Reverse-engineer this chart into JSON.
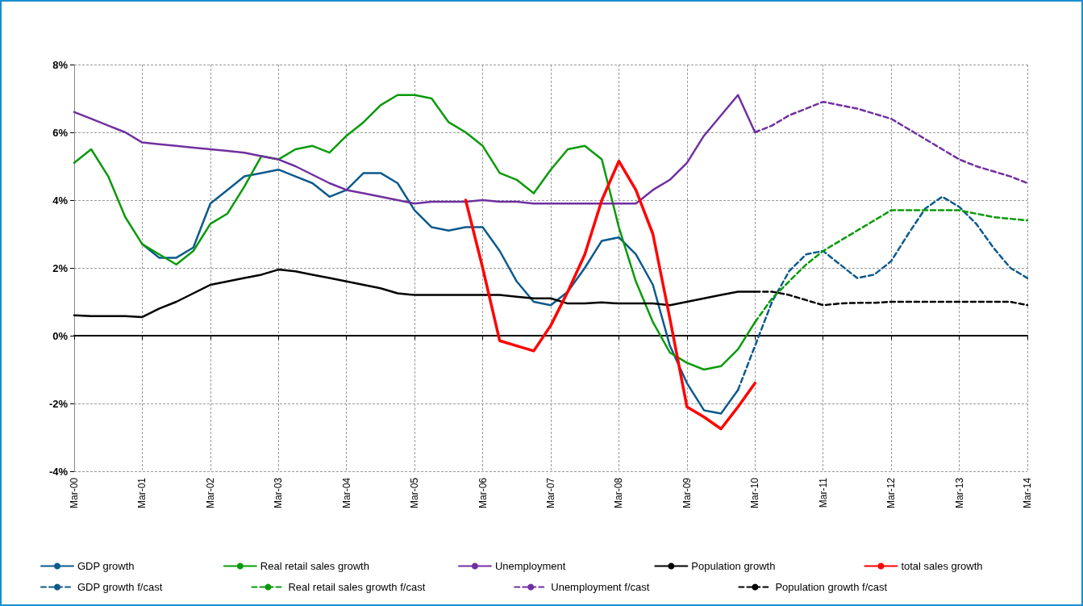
{
  "chart_data": {
    "type": "line",
    "categories": [
      "Mar-00",
      null,
      null,
      null,
      "Mar-01",
      null,
      null,
      null,
      "Mar-02",
      null,
      null,
      null,
      "Mar-03",
      null,
      null,
      null,
      "Mar-04",
      null,
      null,
      null,
      "Mar-05",
      null,
      null,
      null,
      "Mar-06",
      null,
      null,
      null,
      "Mar-07",
      null,
      null,
      null,
      "Mar-08",
      null,
      null,
      null,
      "Mar-09",
      null,
      null,
      null,
      "Mar-10",
      null,
      null,
      null,
      "Mar-11",
      null,
      null,
      null,
      "Mar-12",
      null,
      null,
      null,
      "Mar-13",
      null,
      null,
      null,
      "Mar-14"
    ],
    "series": [
      {
        "name": "GDP growth",
        "color": "#0d5a8c",
        "line_style": "solid",
        "values": [
          null,
          null,
          null,
          null,
          2.7,
          2.3,
          2.3,
          2.6,
          3.9,
          4.3,
          4.7,
          4.8,
          4.9,
          4.7,
          4.5,
          4.1,
          4.3,
          4.8,
          4.8,
          4.5,
          3.7,
          3.2,
          3.1,
          3.2,
          3.2,
          2.5,
          1.6,
          1.0,
          0.9,
          1.3,
          2.0,
          2.8,
          2.9,
          2.4,
          1.5,
          -0.3,
          -1.4,
          -2.2,
          -2.3,
          -1.6,
          null,
          null,
          null,
          null,
          null,
          null,
          null,
          null,
          null,
          null,
          null,
          null,
          null,
          null,
          null,
          null,
          null
        ]
      },
      {
        "name": "Real retail sales growth",
        "color": "#0a9a0a",
        "line_style": "solid",
        "values": [
          5.1,
          5.5,
          4.7,
          3.5,
          2.7,
          2.4,
          2.1,
          2.5,
          3.3,
          3.6,
          4.4,
          5.3,
          5.2,
          5.5,
          5.6,
          5.4,
          5.9,
          6.3,
          6.8,
          7.1,
          7.1,
          7.0,
          6.3,
          6.0,
          5.6,
          4.8,
          4.6,
          4.2,
          4.9,
          5.5,
          5.6,
          5.2,
          3.2,
          1.6,
          0.4,
          -0.5,
          -0.8,
          -1.0,
          -0.9,
          -0.4,
          0.4,
          null,
          null,
          null,
          null,
          null,
          null,
          null,
          null,
          null,
          null,
          null,
          null,
          null,
          null,
          null,
          null
        ]
      },
      {
        "name": "Unemployment",
        "color": "#7030a0",
        "line_style": "solid",
        "values": [
          6.6,
          6.4,
          6.2,
          6.0,
          5.7,
          5.65,
          5.6,
          5.55,
          5.5,
          5.45,
          5.4,
          5.3,
          5.2,
          5.0,
          4.75,
          4.5,
          4.3,
          4.2,
          4.1,
          4.0,
          3.9,
          3.95,
          3.95,
          3.95,
          4.0,
          3.95,
          3.95,
          3.9,
          3.9,
          3.9,
          3.9,
          3.9,
          3.9,
          3.9,
          4.3,
          4.6,
          5.1,
          5.9,
          6.5,
          7.1,
          6.0,
          null,
          null,
          null,
          null,
          null,
          null,
          null,
          null,
          null,
          null,
          null,
          null,
          null,
          null,
          null,
          null
        ]
      },
      {
        "name": "Population growth",
        "color": "#000000",
        "line_style": "solid",
        "values": [
          0.6,
          0.58,
          0.58,
          0.58,
          0.55,
          0.8,
          1.0,
          1.25,
          1.5,
          1.6,
          1.7,
          1.8,
          1.95,
          1.9,
          1.8,
          1.7,
          1.6,
          1.5,
          1.4,
          1.25,
          1.2,
          1.2,
          1.2,
          1.2,
          1.2,
          1.2,
          1.15,
          1.1,
          1.1,
          0.95,
          0.95,
          0.98,
          0.95,
          0.95,
          0.95,
          0.9,
          1.0,
          1.1,
          1.2,
          1.3,
          1.3,
          null,
          null,
          null,
          null,
          null,
          null,
          null,
          null,
          null,
          null,
          null,
          null,
          null,
          null,
          null,
          null
        ]
      },
      {
        "name": "total sales growth",
        "color": "#ff0000",
        "line_style": "solid",
        "values": [
          null,
          null,
          null,
          null,
          null,
          null,
          null,
          null,
          null,
          null,
          null,
          null,
          null,
          null,
          null,
          null,
          null,
          null,
          null,
          null,
          null,
          null,
          null,
          4.0,
          2.0,
          -0.15,
          -0.3,
          -0.45,
          0.3,
          1.3,
          2.4,
          4.0,
          5.15,
          4.3,
          3.0,
          0.5,
          -2.1,
          -2.4,
          -2.75,
          -2.1,
          -1.4,
          null,
          null,
          null,
          null,
          null,
          null,
          null,
          null,
          null,
          null,
          null,
          null,
          null,
          null,
          null,
          null
        ]
      },
      {
        "name": "GDP growth f/cast",
        "color": "#0d5a8c",
        "line_style": "dashed",
        "values": [
          null,
          null,
          null,
          null,
          null,
          null,
          null,
          null,
          null,
          null,
          null,
          null,
          null,
          null,
          null,
          null,
          null,
          null,
          null,
          null,
          null,
          null,
          null,
          null,
          null,
          null,
          null,
          null,
          null,
          null,
          null,
          null,
          null,
          null,
          null,
          null,
          null,
          null,
          null,
          -1.6,
          -0.3,
          1.0,
          1.9,
          2.4,
          2.5,
          2.1,
          1.7,
          1.8,
          2.2,
          3.0,
          3.75,
          4.1,
          3.8,
          3.3,
          2.6,
          2.0,
          1.7
        ]
      },
      {
        "name": "Real retail sales growth f/cast",
        "color": "#0a9a0a",
        "line_style": "dashed",
        "values": [
          null,
          null,
          null,
          null,
          null,
          null,
          null,
          null,
          null,
          null,
          null,
          null,
          null,
          null,
          null,
          null,
          null,
          null,
          null,
          null,
          null,
          null,
          null,
          null,
          null,
          null,
          null,
          null,
          null,
          null,
          null,
          null,
          null,
          null,
          null,
          null,
          null,
          null,
          null,
          null,
          0.4,
          1.1,
          1.6,
          2.1,
          2.5,
          2.8,
          3.1,
          3.4,
          3.7,
          3.7,
          3.7,
          3.7,
          3.7,
          3.6,
          3.5,
          3.45,
          3.4
        ]
      },
      {
        "name": "Unemployment f/cast",
        "color": "#7030a0",
        "line_style": "dashed",
        "values": [
          null,
          null,
          null,
          null,
          null,
          null,
          null,
          null,
          null,
          null,
          null,
          null,
          null,
          null,
          null,
          null,
          null,
          null,
          null,
          null,
          null,
          null,
          null,
          null,
          null,
          null,
          null,
          null,
          null,
          null,
          null,
          null,
          null,
          null,
          null,
          null,
          null,
          null,
          null,
          null,
          6.0,
          6.2,
          6.5,
          6.7,
          6.9,
          6.8,
          6.7,
          6.55,
          6.4,
          6.1,
          5.8,
          5.5,
          5.2,
          5.0,
          4.85,
          4.7,
          4.5
        ]
      },
      {
        "name": "Population growth f/cast",
        "color": "#000000",
        "line_style": "dashed",
        "values": [
          null,
          null,
          null,
          null,
          null,
          null,
          null,
          null,
          null,
          null,
          null,
          null,
          null,
          null,
          null,
          null,
          null,
          null,
          null,
          null,
          null,
          null,
          null,
          null,
          null,
          null,
          null,
          null,
          null,
          null,
          null,
          null,
          null,
          null,
          null,
          null,
          null,
          null,
          null,
          null,
          1.3,
          1.3,
          1.2,
          1.05,
          0.9,
          0.95,
          0.97,
          0.97,
          1.0,
          1.0,
          1.0,
          1.0,
          1.0,
          1.0,
          1.0,
          1.0,
          0.9
        ]
      }
    ],
    "ylim": [
      -4,
      8
    ],
    "yticks": [
      {
        "value": -4,
        "label": "-4%"
      },
      {
        "value": -2,
        "label": "-2%"
      },
      {
        "value": 0,
        "label": "0%"
      },
      {
        "value": 2,
        "label": "2%"
      },
      {
        "value": 4,
        "label": "4%"
      },
      {
        "value": 6,
        "label": "6%"
      },
      {
        "value": 8,
        "label": "8%"
      }
    ],
    "grid": true,
    "legend": "bottom",
    "marker": "none"
  }
}
